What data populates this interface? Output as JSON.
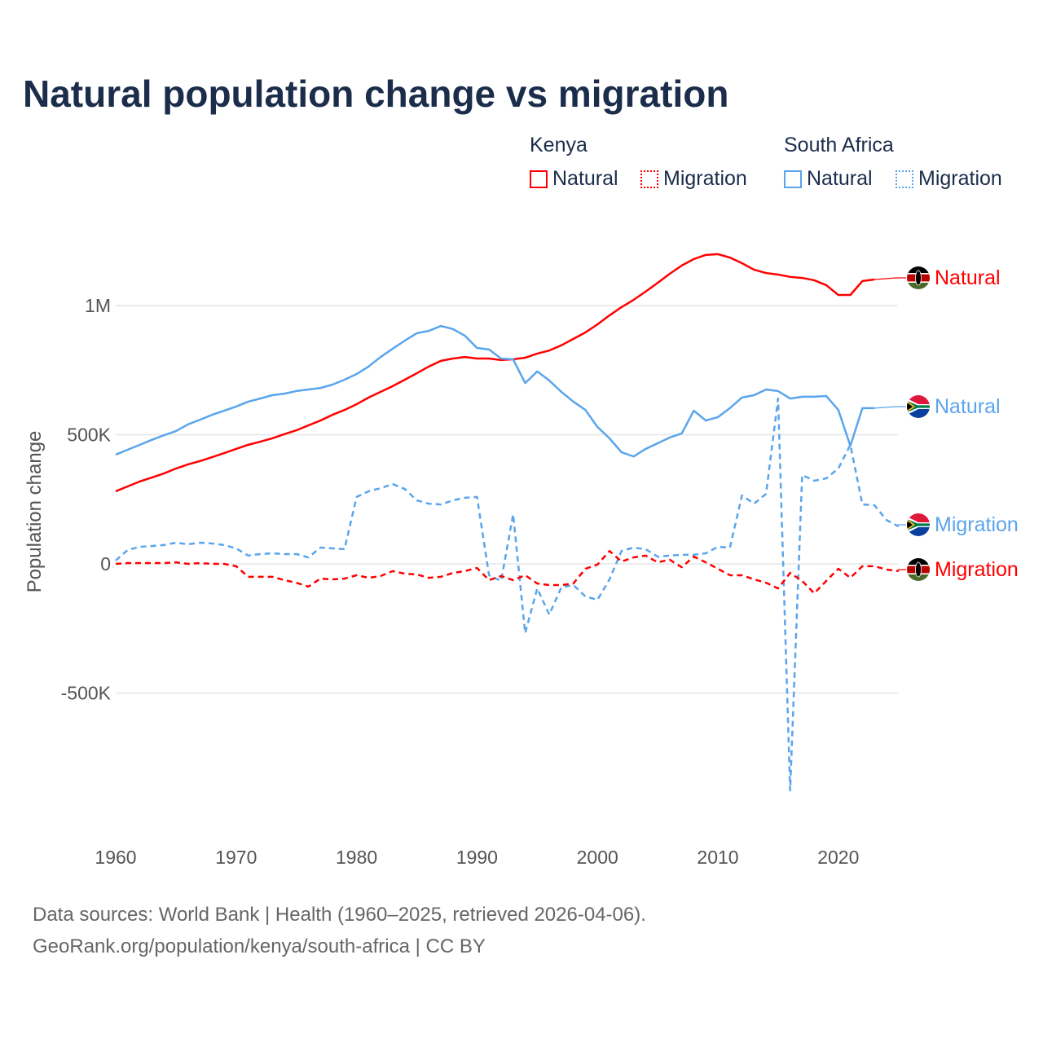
{
  "title": "Natural population change vs migration",
  "legend": {
    "groups": [
      {
        "country": "Kenya",
        "items": [
          {
            "label": "Natural",
            "style": "solid"
          },
          {
            "label": "Migration",
            "style": "dotted"
          }
        ],
        "color": "#ff0000"
      },
      {
        "country": "South Africa",
        "items": [
          {
            "label": "Natural",
            "style": "solid"
          },
          {
            "label": "Migration",
            "style": "dotted"
          }
        ],
        "color": "#5aa5eb"
      }
    ]
  },
  "footer": {
    "line1": "Data sources: World Bank | Health (1960–2025, retrieved 2026-04-06).",
    "line2": "GeoRank.org/population/kenya/south-africa | CC BY"
  },
  "chart_data": {
    "type": "line",
    "title": "Natural population change vs migration",
    "xlabel": "",
    "ylabel": "Population change",
    "xlim": [
      1960,
      2025
    ],
    "ylim": [
      -1000000,
      1250000
    ],
    "xticks": [
      1960,
      1970,
      1980,
      1990,
      2000,
      2010,
      2020
    ],
    "yticks": [
      {
        "v": -500000,
        "label": "-500K"
      },
      {
        "v": 0,
        "label": "0"
      },
      {
        "v": 500000,
        "label": "500K"
      },
      {
        "v": 1000000,
        "label": "1M"
      }
    ],
    "grid": true,
    "x_start": 1960,
    "units": "thousands",
    "series": [
      {
        "name": "Kenya Natural",
        "end_label": "Natural",
        "flag": "kenya",
        "color": "#ff0000",
        "dash": false,
        "values": [
          281,
          300,
          319,
          334,
          350,
          369,
          385,
          398,
          413,
          429,
          445,
          461,
          473,
          486,
          502,
          517,
          536,
          555,
          577,
          596,
          618,
          644,
          666,
          688,
          713,
          738,
          764,
          786,
          795,
          801,
          795,
          795,
          789,
          792,
          798,
          814,
          826,
          846,
          871,
          896,
          927,
          962,
          994,
          1022,
          1054,
          1088,
          1123,
          1155,
          1180,
          1196,
          1199,
          1186,
          1164,
          1139,
          1126,
          1120,
          1111,
          1107,
          1098,
          1079,
          1041,
          1041,
          1095,
          1101
        ]
      },
      {
        "name": "South Africa Natural",
        "end_label": "Natural",
        "flag": "south-africa",
        "color": "#5aa5eb",
        "dash": false,
        "values": [
          423,
          442,
          461,
          480,
          498,
          514,
          540,
          558,
          577,
          593,
          609,
          628,
          640,
          653,
          659,
          669,
          675,
          681,
          694,
          713,
          735,
          764,
          801,
          833,
          864,
          893,
          902,
          921,
          909,
          883,
          836,
          830,
          795,
          792,
          700,
          745,
          710,
          666,
          628,
          596,
          530,
          486,
          432,
          416,
          445,
          467,
          489,
          505,
          593,
          555,
          568,
          603,
          644,
          653,
          675,
          669,
          640,
          647,
          647,
          650,
          596,
          457,
          603,
          603
        ]
      },
      {
        "name": "South Africa Migration",
        "end_label": "Migration",
        "flag": "south-africa",
        "color": "#5aa5eb",
        "dash": true,
        "values": [
          13,
          54,
          66,
          69,
          73,
          82,
          76,
          82,
          79,
          73,
          60,
          32,
          38,
          41,
          38,
          38,
          25,
          63,
          60,
          57,
          259,
          281,
          293,
          309,
          290,
          246,
          233,
          230,
          246,
          256,
          259,
          -44,
          -66,
          192,
          -268,
          -95,
          -196,
          -91,
          -82,
          -126,
          -139,
          -60,
          50,
          63,
          57,
          28,
          32,
          35,
          35,
          41,
          66,
          63,
          265,
          233,
          271,
          640,
          -877,
          344,
          322,
          331,
          369,
          461,
          230,
          227,
          170,
          145
        ]
      },
      {
        "name": "Kenya Migration",
        "end_label": "Migration",
        "flag": "kenya",
        "color": "#ff0000",
        "dash": true,
        "values": [
          0,
          3,
          3,
          3,
          3,
          6,
          0,
          3,
          0,
          0,
          -9,
          -50,
          -50,
          -50,
          -63,
          -73,
          -88,
          -57,
          -60,
          -57,
          -44,
          -54,
          -47,
          -28,
          -38,
          -41,
          -54,
          -50,
          -35,
          -28,
          -16,
          -63,
          -47,
          -63,
          -44,
          -76,
          -82,
          -82,
          -76,
          -19,
          -3,
          50,
          9,
          25,
          32,
          6,
          16,
          -13,
          28,
          6,
          -19,
          -44,
          -44,
          -60,
          -73,
          -95,
          -35,
          -66,
          -114,
          -66,
          -19,
          -54,
          -9,
          -9,
          -22,
          -28
        ]
      }
    ]
  }
}
